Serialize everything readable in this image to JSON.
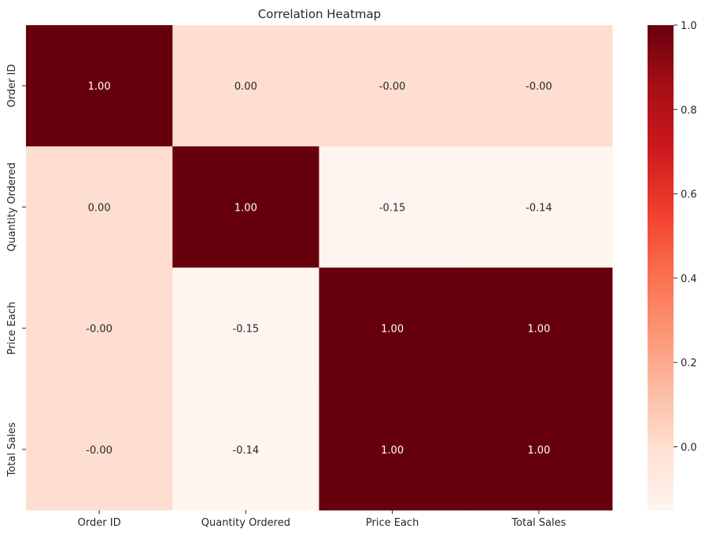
{
  "chart_data": {
    "type": "heatmap",
    "title": "Correlation Heatmap",
    "xlabel": "",
    "ylabel": "",
    "x_categories": [
      "Order ID",
      "Quantity Ordered",
      "Price Each",
      "Total Sales"
    ],
    "y_categories": [
      "Order ID",
      "Quantity Ordered",
      "Price Each",
      "Total Sales"
    ],
    "values": [
      [
        1.0,
        0.0,
        -0.0,
        -0.0
      ],
      [
        0.0,
        1.0,
        -0.15,
        -0.14
      ],
      [
        -0.0,
        -0.15,
        1.0,
        1.0
      ],
      [
        -0.0,
        -0.14,
        1.0,
        1.0
      ]
    ],
    "annotations": [
      [
        "1.00",
        "0.00",
        "-0.00",
        "-0.00"
      ],
      [
        "0.00",
        "1.00",
        "-0.15",
        "-0.14"
      ],
      [
        "-0.00",
        "-0.15",
        "1.00",
        "1.00"
      ],
      [
        "-0.00",
        "-0.14",
        "1.00",
        "1.00"
      ]
    ],
    "colormap": "Reds",
    "colormap_stops": [
      "#fff5f0",
      "#fee0d2",
      "#fcbba1",
      "#fc9272",
      "#fb6a4a",
      "#ef3b2c",
      "#cb181d",
      "#a50f15",
      "#67000d"
    ],
    "vmin": -0.15,
    "vmax": 1.0,
    "colorbar": {
      "ticks": [
        1.0,
        0.8,
        0.6,
        0.4,
        0.2,
        0.0
      ],
      "tick_labels": [
        "1.0",
        "0.8",
        "0.6",
        "0.4",
        "0.2",
        "0.0"
      ]
    },
    "grid": false
  }
}
